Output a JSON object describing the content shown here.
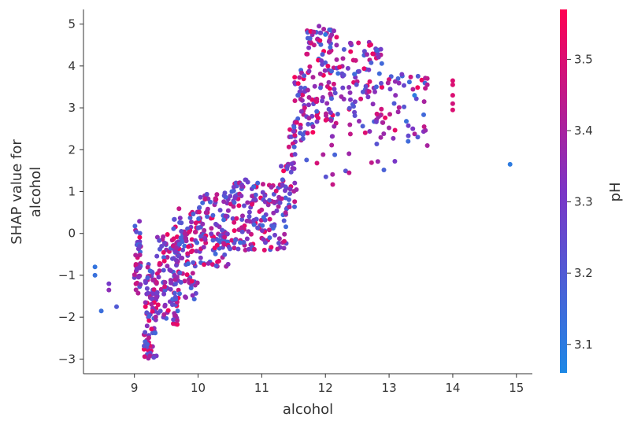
{
  "chart_data": {
    "type": "scatter",
    "title": "",
    "xlabel": "alcohol",
    "ylabel": [
      "SHAP value for",
      "alcohol"
    ],
    "xlim": [
      8.2,
      15.25
    ],
    "ylim": [
      -3.35,
      5.35
    ],
    "xticks": [
      9,
      10,
      11,
      12,
      13,
      14,
      15
    ],
    "yticks": [
      -3,
      -2,
      -1,
      0,
      1,
      2,
      3,
      4,
      5
    ],
    "xtick_labels": [
      "9",
      "10",
      "11",
      "12",
      "13",
      "14",
      "15"
    ],
    "ytick_labels": [
      "−3",
      "−2",
      "−1",
      "0",
      "1",
      "2",
      "3",
      "4",
      "5"
    ],
    "grid": false,
    "colorbar": {
      "label": "pH",
      "range": [
        3.06,
        3.57
      ],
      "ticks": [
        3.1,
        3.2,
        3.3,
        3.4,
        3.5
      ],
      "tick_labels": [
        "3.1",
        "3.2",
        "3.3",
        "3.4",
        "3.5"
      ],
      "color_low": "#1e88e5",
      "color_mid": "#7b35c6",
      "color_high": "#ff0052"
    },
    "clusters": [
      {
        "x": [
          9.0,
          9.1
        ],
        "y": [
          -1.6,
          0.3
        ],
        "n": 40
      },
      {
        "x": [
          9.15,
          9.35
        ],
        "y": [
          -3.0,
          -0.7
        ],
        "n": 90
      },
      {
        "x": [
          9.35,
          9.7
        ],
        "y": [
          -2.2,
          0.0
        ],
        "n": 90
      },
      {
        "x": [
          9.6,
          10.0
        ],
        "y": [
          -1.6,
          0.6
        ],
        "n": 100
      },
      {
        "x": [
          10.0,
          10.5
        ],
        "y": [
          -0.8,
          1.0
        ],
        "n": 110
      },
      {
        "x": [
          10.5,
          11.0
        ],
        "y": [
          -0.4,
          1.3
        ],
        "n": 100
      },
      {
        "x": [
          11.0,
          11.4
        ],
        "y": [
          -0.4,
          1.2
        ],
        "n": 70
      },
      {
        "x": [
          11.3,
          11.55
        ],
        "y": [
          0.6,
          2.6
        ],
        "n": 40
      },
      {
        "x": [
          11.5,
          11.7
        ],
        "y": [
          2.2,
          4.0
        ],
        "n": 40
      },
      {
        "x": [
          11.7,
          12.2
        ],
        "y": [
          2.6,
          4.9
        ],
        "n": 110
      },
      {
        "x": [
          12.2,
          12.9
        ],
        "y": [
          2.4,
          4.6
        ],
        "n": 90
      },
      {
        "x": [
          12.9,
          13.6
        ],
        "y": [
          2.3,
          3.8
        ],
        "n": 35
      },
      {
        "x": [
          11.6,
          12.4
        ],
        "y": [
          1.1,
          2.6
        ],
        "n": 18
      },
      {
        "x": [
          12.6,
          13.1
        ],
        "y": [
          1.5,
          2.8
        ],
        "n": 10
      }
    ],
    "points": [
      {
        "x": 8.38,
        "y": -0.8,
        "c": 3.12
      },
      {
        "x": 8.38,
        "y": -1.0,
        "c": 3.13
      },
      {
        "x": 8.48,
        "y": -1.85,
        "c": 3.14
      },
      {
        "x": 8.6,
        "y": -1.2,
        "c": 3.3
      },
      {
        "x": 8.6,
        "y": -1.35,
        "c": 3.35
      },
      {
        "x": 8.72,
        "y": -1.75,
        "c": 3.2
      },
      {
        "x": 13.1,
        "y": 3.3,
        "c": 3.35
      },
      {
        "x": 13.2,
        "y": 3.8,
        "c": 3.3
      },
      {
        "x": 13.3,
        "y": 2.2,
        "c": 3.15
      },
      {
        "x": 13.4,
        "y": 3.3,
        "c": 3.1
      },
      {
        "x": 13.45,
        "y": 2.3,
        "c": 3.2
      },
      {
        "x": 13.55,
        "y": 2.55,
        "c": 3.45
      },
      {
        "x": 13.55,
        "y": 3.15,
        "c": 3.4
      },
      {
        "x": 13.6,
        "y": 3.55,
        "c": 3.42
      },
      {
        "x": 13.6,
        "y": 3.7,
        "c": 3.45
      },
      {
        "x": 13.6,
        "y": 2.1,
        "c": 3.4
      },
      {
        "x": 14.0,
        "y": 3.65,
        "c": 3.5
      },
      {
        "x": 14.0,
        "y": 3.55,
        "c": 3.5
      },
      {
        "x": 14.0,
        "y": 3.3,
        "c": 3.5
      },
      {
        "x": 14.0,
        "y": 3.1,
        "c": 3.48
      },
      {
        "x": 14.0,
        "y": 2.95,
        "c": 3.5
      },
      {
        "x": 14.9,
        "y": 1.65,
        "c": 3.1
      },
      {
        "x": 12.0,
        "y": 4.75,
        "c": 3.1
      },
      {
        "x": 11.9,
        "y": 4.95,
        "c": 3.35
      }
    ]
  }
}
